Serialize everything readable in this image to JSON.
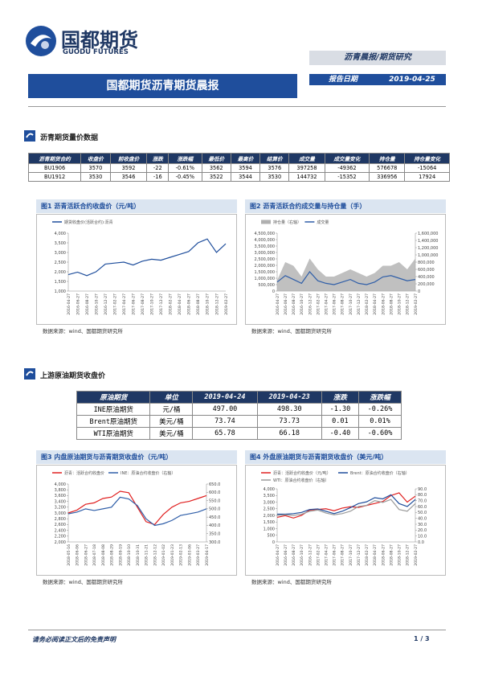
{
  "header": {
    "logo_cn": "国都期货",
    "logo_en": "GUODU FUTURES",
    "category": "沥青晨报/期货研究",
    "title": "国都期货沥青期货晨报",
    "date_label": "报告日期",
    "date": "2019-04-25"
  },
  "sections": [
    {
      "title": "沥青期货量价数据"
    },
    {
      "title": "上游原油期货收盘价"
    }
  ],
  "tables": [
    {
      "header": [
        "沥青期货合约",
        "收盘价",
        "前收盘价",
        "涨跌",
        "涨跌幅",
        "最低价",
        "最高价",
        "结算价",
        "成交量",
        "成交量变化",
        "持仓量",
        "持仓量变化"
      ],
      "rows": [
        [
          "BU1906",
          "3570",
          "3592",
          "-22",
          "-0.61%",
          "3562",
          "3594",
          "3576",
          "397258",
          "-49362",
          "576678",
          "-15064"
        ],
        [
          "BU1912",
          "3530",
          "3546",
          "-16",
          "-0.45%",
          "3522",
          "3544",
          "3530",
          "144732",
          "-15352",
          "336956",
          "17924"
        ]
      ]
    },
    {
      "header": [
        "原油期货",
        "单位",
        "2019-04-24",
        "2019-04-23",
        "涨跌",
        "涨跌幅"
      ],
      "rows": [
        [
          "INE原油期货",
          "元/桶",
          "497.00",
          "498.30",
          "-1.30",
          "-0.26%"
        ],
        [
          "Brent原油期货",
          "美元/桶",
          "73.74",
          "73.73",
          "0.01",
          "0.01%"
        ],
        [
          "WTI原油期货",
          "美元/桶",
          "65.78",
          "66.18",
          "-0.40",
          "-0.60%"
        ]
      ]
    }
  ],
  "figures": [
    {
      "title": "图1 沥青活跃合约收盘价（元/吨）",
      "source": "数据来源：wind、国都期货研究所",
      "chart": {
        "type": "line",
        "categories": [
          "2016-04-27",
          "2016-06-27",
          "2016-08-27",
          "2016-10-27",
          "2016-12-27",
          "2017-02-27",
          "2017-04-27",
          "2017-06-27",
          "2017-08-27",
          "2017-10-27",
          "2017-12-27",
          "2018-02-27",
          "2018-04-27",
          "2018-06-27",
          "2018-08-27",
          "2018-10-27",
          "2018-12-27",
          "2019-02-27"
        ],
        "series": [
          {
            "name": "期货收盘价(活跃合约):沥青",
            "color": "#1f4e9c",
            "values": [
              1850,
              1980,
              1800,
              2000,
              2400,
              2450,
              2500,
              2350,
              2550,
              2650,
              2600,
              2750,
              2900,
              3050,
              3500,
              3700,
              3000,
              3450
            ]
          }
        ],
        "ylim": [
          1000,
          4000
        ],
        "yticks": [
          {
            "value": 1000,
            "label": "1,000"
          },
          {
            "value": 1500,
            "label": "1,500"
          },
          {
            "value": 2000,
            "label": "2,000"
          },
          {
            "value": 2500,
            "label": "2,500"
          },
          {
            "value": 3000,
            "label": "3,000"
          },
          {
            "value": 3500,
            "label": "3,500"
          },
          {
            "value": 4000,
            "label": "4,000"
          }
        ]
      }
    },
    {
      "title": "图2 沥青活跃合约成交量与持仓量（手）",
      "source": "数据来源：wind、国都期货研究所",
      "chart": {
        "type": "line",
        "categories": [
          "2016-04-27",
          "2016-06-27",
          "2016-08-27",
          "2016-10-27",
          "2016-12-27",
          "2017-02-27",
          "2017-04-27",
          "2017-06-27",
          "2017-08-27",
          "2017-10-27",
          "2017-12-27",
          "2018-02-27",
          "2018-04-27",
          "2018-06-27",
          "2018-08-27",
          "2018-10-27",
          "2018-12-27",
          "2019-02-27"
        ],
        "series": [
          {
            "name": "持仓量（右轴）",
            "color": "#b0b0b0",
            "kind": "area",
            "axis": "y2",
            "values": [
              300000,
              800000,
              700000,
              400000,
              900000,
              600000,
              400000,
              400000,
              500000,
              600000,
              500000,
              400000,
              500000,
              700000,
              700000,
              800000,
              600000,
              900000
            ]
          },
          {
            "name": "成交量",
            "color": "#2f5ea8",
            "values": [
              700000,
              1200000,
              900000,
              600000,
              1500000,
              800000,
              600000,
              500000,
              700000,
              900000,
              600000,
              500000,
              700000,
              1100000,
              1200000,
              1000000,
              800000,
              900000
            ]
          }
        ],
        "ylim": [
          0,
          4500000
        ],
        "yticks": [
          0,
          {
            "value": 500000,
            "label": "500,000"
          },
          {
            "value": 1000000,
            "label": "1,000,000"
          },
          {
            "value": 1500000,
            "label": "1,500,000"
          },
          {
            "value": 2000000,
            "label": "2,000,000"
          },
          {
            "value": 2500000,
            "label": "2,500,000"
          },
          {
            "value": 3000000,
            "label": "3,000,000"
          },
          {
            "value": 3500000,
            "label": "3,500,000"
          },
          {
            "value": 4000000,
            "label": "4,000,000"
          },
          {
            "value": 4500000,
            "label": "4,500,000"
          }
        ],
        "y2lim": [
          0,
          1600000
        ],
        "y2ticks": [
          0,
          {
            "value": 200000,
            "label": "200,000"
          },
          {
            "value": 400000,
            "label": "400,000"
          },
          {
            "value": 600000,
            "label": "600,000"
          },
          {
            "value": 800000,
            "label": "800,000"
          },
          {
            "value": 1000000,
            "label": "1,000,000"
          },
          {
            "value": 1200000,
            "label": "1,200,000"
          },
          {
            "value": 1400000,
            "label": "1,400,000"
          },
          {
            "value": 1600000,
            "label": "1,600,000"
          }
        ]
      }
    },
    {
      "title": "图3 内盘原油期货与沥青期货收盘价（元/吨）",
      "source": "数据来源：wind、国都期货研究所",
      "chart": {
        "type": "line",
        "categories": [
          "2018-05-16",
          "2018-06-06",
          "2018-06-27",
          "2018-07-18",
          "2018-08-08",
          "2018-08-29",
          "2018-09-19",
          "2018-10-10",
          "2018-10-31",
          "2018-11-21",
          "2018-12-12",
          "2019-01-02",
          "2019-01-23",
          "2019-02-13",
          "2019-03-06",
          "2019-03-27",
          "2019-04-17"
        ],
        "series": [
          {
            "name": "沥青：活跃合约收盘价",
            "color": "#e02020",
            "values": [
              3000,
              3100,
              3300,
              3350,
              3500,
              3550,
              3750,
              3700,
              3200,
              2700,
              2600,
              2950,
              3200,
              3350,
              3400,
              3500,
              3600
            ]
          },
          {
            "name": "INE：原油合约收盘价（右轴）",
            "color": "#2f5ea8",
            "axis": "y2",
            "values": [
              470,
              480,
              500,
              490,
              500,
              510,
              570,
              560,
              520,
              440,
              400,
              410,
              430,
              460,
              470,
              480,
              500
            ]
          }
        ],
        "ylim": [
          2000,
          4000
        ],
        "yticks": [
          {
            "value": 2000,
            "label": "2,000"
          },
          {
            "value": 2200,
            "label": "2,200"
          },
          {
            "value": 2400,
            "label": "2,400"
          },
          {
            "value": 2600,
            "label": "2,600"
          },
          {
            "value": 2800,
            "label": "2,800"
          },
          {
            "value": 3000,
            "label": "3,000"
          },
          {
            "value": 3200,
            "label": "3,200"
          },
          {
            "value": 3400,
            "label": "3,400"
          },
          {
            "value": 3600,
            "label": "3,600"
          },
          {
            "value": 3800,
            "label": "3,800"
          },
          {
            "value": 4000,
            "label": "4,000"
          }
        ],
        "y2lim": [
          300,
          650
        ],
        "y2ticks": [
          {
            "value": 300,
            "label": "300.0"
          },
          {
            "value": 350,
            "label": "350.0"
          },
          {
            "value": 400,
            "label": "400.0"
          },
          {
            "value": 450,
            "label": "450.0"
          },
          {
            "value": 500,
            "label": "500.0"
          },
          {
            "value": 550,
            "label": "550.0"
          },
          {
            "value": 600,
            "label": "600.0"
          },
          {
            "value": 650,
            "label": "650.0"
          }
        ]
      }
    },
    {
      "title": "图4 外盘原油期货与沥青期货收盘价（美元/吨）",
      "source": "数据来源：wind、国都期货研究所",
      "chart": {
        "type": "line",
        "categories": [
          "2016-04-27",
          "2016-06-27",
          "2016-08-27",
          "2016-10-27",
          "2016-12-27",
          "2017-02-27",
          "2017-04-27",
          "2017-06-27",
          "2017-08-27",
          "2017-10-27",
          "2017-12-27",
          "2018-02-27",
          "2018-04-27",
          "2018-06-27",
          "2018-08-27",
          "2018-10-27",
          "2018-12-27",
          "2019-02-27"
        ],
        "series": [
          {
            "name": "沥青：活跃合约收盘价（元/吨）",
            "color": "#e02020",
            "values": [
              1850,
              1980,
              1800,
              2000,
              2400,
              2450,
              2500,
              2350,
              2550,
              2650,
              2600,
              2750,
              2900,
              3050,
              3500,
              3700,
              3000,
              3450
            ]
          },
          {
            "name": "Brent：原油合约收盘价（右轴）",
            "color": "#1f4e9c",
            "axis": "y2",
            "values": [
              47,
              47,
              48,
              50,
              55,
              56,
              52,
              48,
              52,
              58,
              65,
              68,
              75,
              73,
              80,
              65,
              60,
              72
            ]
          },
          {
            "name": "WTI：原油合约收盘价（右轴）",
            "color": "#9a9a9a",
            "axis": "y2",
            "values": [
              45,
              46,
              45,
              47,
              52,
              54,
              49,
              46,
              48,
              52,
              60,
              62,
              70,
              67,
              72,
              55,
              52,
              65
            ]
          }
        ],
        "ylim": [
          0,
          4000
        ],
        "yticks": [
          0,
          500,
          {
            "value": 1000,
            "label": "1,000"
          },
          {
            "value": 1500,
            "label": "1,500"
          },
          {
            "value": 2000,
            "label": "2,000"
          },
          {
            "value": 2500,
            "label": "2,500"
          },
          {
            "value": 3000,
            "label": "3,000"
          },
          {
            "value": 3500,
            "label": "3,500"
          },
          {
            "value": 4000,
            "label": "4,000"
          }
        ],
        "y2lim": [
          0,
          90
        ],
        "y2ticks": [
          {
            "value": 0,
            "label": "0.0"
          },
          {
            "value": 10,
            "label": "10.0"
          },
          {
            "value": 20,
            "label": "20.0"
          },
          {
            "value": 30,
            "label": "30.0"
          },
          {
            "value": 40,
            "label": "40.0"
          },
          {
            "value": 50,
            "label": "50.0"
          },
          {
            "value": 60,
            "label": "60.0"
          },
          {
            "value": 70,
            "label": "70.0"
          },
          {
            "value": 80,
            "label": "80.0"
          },
          {
            "value": 90,
            "label": "90.0"
          }
        ]
      }
    }
  ],
  "footer": {
    "disclaimer": "请务必阅读正文后的免责声明",
    "page": "1 / 3"
  }
}
